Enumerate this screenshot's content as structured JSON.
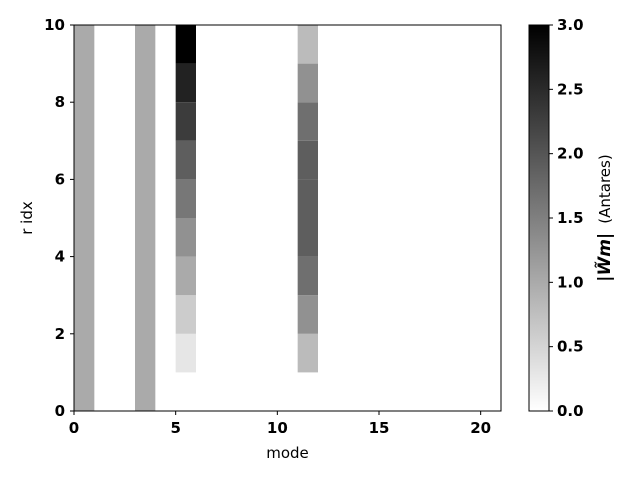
{
  "chart_data": {
    "type": "heatmap",
    "xlabel": "mode",
    "ylabel": "r idx",
    "xlim": [
      0,
      21
    ],
    "ylim": [
      0,
      10
    ],
    "x_ticks": [
      0,
      5,
      10,
      15,
      20
    ],
    "y_ticks": [
      0,
      2,
      4,
      6,
      8,
      10
    ],
    "colormap": "gray_r",
    "grid": false,
    "colorbar": {
      "label_math": "|W̃m|",
      "label_text": "(Antares)",
      "range": [
        0.0,
        3.0
      ],
      "ticks": [
        "0.0",
        "0.5",
        "1.0",
        "1.5",
        "2.0",
        "2.5",
        "3.0"
      ]
    },
    "cells": [
      {
        "x": 0,
        "y0": 0,
        "y1": 10,
        "value": 1.0
      },
      {
        "x": 3,
        "y0": 0,
        "y1": 10,
        "value": 1.0
      },
      {
        "x": 5,
        "y0": 1,
        "y1": 2,
        "value": 0.3
      },
      {
        "x": 5,
        "y0": 2,
        "y1": 3,
        "value": 0.6
      },
      {
        "x": 5,
        "y0": 3,
        "y1": 4,
        "value": 1.0
      },
      {
        "x": 5,
        "y0": 4,
        "y1": 5,
        "value": 1.3
      },
      {
        "x": 5,
        "y0": 5,
        "y1": 6,
        "value": 1.6
      },
      {
        "x": 5,
        "y0": 6,
        "y1": 7,
        "value": 1.9
      },
      {
        "x": 5,
        "y0": 7,
        "y1": 8,
        "value": 2.3
      },
      {
        "x": 5,
        "y0": 8,
        "y1": 9,
        "value": 2.6
      },
      {
        "x": 5,
        "y0": 9,
        "y1": 10,
        "value": 3.0
      },
      {
        "x": 11,
        "y0": 1,
        "y1": 2,
        "value": 0.8
      },
      {
        "x": 11,
        "y0": 2,
        "y1": 3,
        "value": 1.3
      },
      {
        "x": 11,
        "y0": 3,
        "y1": 4,
        "value": 1.7
      },
      {
        "x": 11,
        "y0": 4,
        "y1": 5,
        "value": 1.9
      },
      {
        "x": 11,
        "y0": 5,
        "y1": 6,
        "value": 1.9
      },
      {
        "x": 11,
        "y0": 6,
        "y1": 7,
        "value": 1.9
      },
      {
        "x": 11,
        "y0": 7,
        "y1": 8,
        "value": 1.7
      },
      {
        "x": 11,
        "y0": 8,
        "y1": 9,
        "value": 1.3
      },
      {
        "x": 11,
        "y0": 9,
        "y1": 10,
        "value": 0.8
      }
    ]
  }
}
